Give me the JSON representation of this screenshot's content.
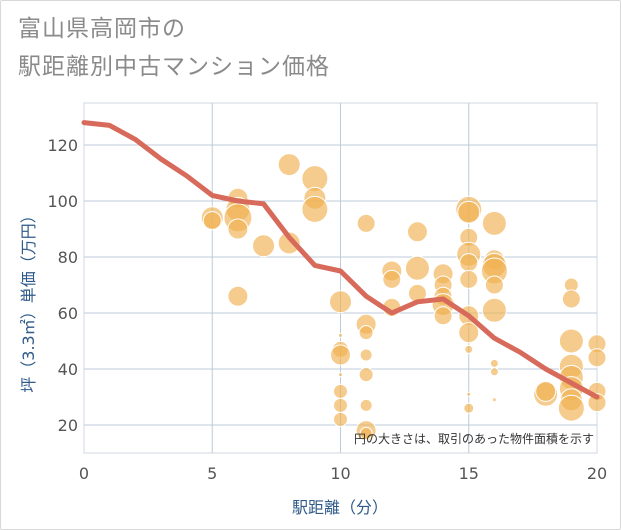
{
  "title_line1": "富山県高岡市の",
  "title_line2": "駅距離別中古マンション価格",
  "chart_data": {
    "type": "scatter",
    "xlabel": "駅距離（分）",
    "ylabel": "坪（3.3㎡）単価（万円）",
    "xlim": [
      0,
      20
    ],
    "ylim": [
      10,
      135
    ],
    "xticks": [
      0,
      5,
      10,
      15,
      20
    ],
    "yticks": [
      20,
      40,
      60,
      80,
      100,
      120
    ],
    "grid": true,
    "annotation": "円の大きさは、取引のあった物件面積を示す",
    "colors": {
      "bubble": "#f0b050",
      "line": "#d76a5b",
      "grid": "#bfcbd8"
    },
    "line": {
      "x": [
        0,
        1,
        2,
        3,
        4,
        5,
        6,
        7,
        8,
        9,
        10,
        11,
        12,
        13,
        14,
        15,
        16,
        17,
        18,
        19,
        20
      ],
      "y": [
        128,
        127,
        122,
        115,
        109,
        102,
        100,
        99,
        87,
        77,
        75,
        66,
        60,
        64,
        65,
        59,
        51,
        46,
        40,
        35,
        30
      ]
    },
    "bubbles": [
      {
        "x": 5,
        "y": 94,
        "s": 11
      },
      {
        "x": 5,
        "y": 93,
        "s": 9
      },
      {
        "x": 6,
        "y": 101,
        "s": 10
      },
      {
        "x": 6,
        "y": 97,
        "s": 12
      },
      {
        "x": 6,
        "y": 94,
        "s": 14
      },
      {
        "x": 6,
        "y": 90,
        "s": 10
      },
      {
        "x": 6,
        "y": 66,
        "s": 10
      },
      {
        "x": 7,
        "y": 84,
        "s": 11
      },
      {
        "x": 8,
        "y": 113,
        "s": 11
      },
      {
        "x": 8,
        "y": 85,
        "s": 11
      },
      {
        "x": 9,
        "y": 108,
        "s": 13
      },
      {
        "x": 9,
        "y": 101,
        "s": 11
      },
      {
        "x": 9,
        "y": 97,
        "s": 13
      },
      {
        "x": 10,
        "y": 64,
        "s": 11
      },
      {
        "x": 10,
        "y": 47,
        "s": 8
      },
      {
        "x": 10,
        "y": 45,
        "s": 10
      },
      {
        "x": 10,
        "y": 32,
        "s": 7
      },
      {
        "x": 10,
        "y": 27,
        "s": 7
      },
      {
        "x": 10,
        "y": 22,
        "s": 7
      },
      {
        "x": 10,
        "y": 52,
        "s": 2
      },
      {
        "x": 10,
        "y": 38,
        "s": 2
      },
      {
        "x": 11,
        "y": 92,
        "s": 9
      },
      {
        "x": 11,
        "y": 56,
        "s": 10
      },
      {
        "x": 11,
        "y": 53,
        "s": 7
      },
      {
        "x": 11,
        "y": 45,
        "s": 6
      },
      {
        "x": 11,
        "y": 38,
        "s": 7
      },
      {
        "x": 11,
        "y": 27,
        "s": 6
      },
      {
        "x": 11,
        "y": 18,
        "s": 10
      },
      {
        "x": 11,
        "y": 17,
        "s": 6
      },
      {
        "x": 12,
        "y": 75,
        "s": 10
      },
      {
        "x": 12,
        "y": 72,
        "s": 9
      },
      {
        "x": 12,
        "y": 62,
        "s": 9
      },
      {
        "x": 13,
        "y": 89,
        "s": 10
      },
      {
        "x": 13,
        "y": 76,
        "s": 12
      },
      {
        "x": 13,
        "y": 67,
        "s": 9
      },
      {
        "x": 14,
        "y": 74,
        "s": 10
      },
      {
        "x": 14,
        "y": 70,
        "s": 9
      },
      {
        "x": 14,
        "y": 66,
        "s": 9
      },
      {
        "x": 14,
        "y": 63,
        "s": 11
      },
      {
        "x": 14,
        "y": 59,
        "s": 9
      },
      {
        "x": 15,
        "y": 97,
        "s": 13
      },
      {
        "x": 15,
        "y": 96,
        "s": 11
      },
      {
        "x": 15,
        "y": 87,
        "s": 9
      },
      {
        "x": 15,
        "y": 81,
        "s": 12
      },
      {
        "x": 15,
        "y": 78,
        "s": 9
      },
      {
        "x": 15,
        "y": 72,
        "s": 9
      },
      {
        "x": 15,
        "y": 59,
        "s": 10
      },
      {
        "x": 15,
        "y": 53,
        "s": 10
      },
      {
        "x": 15,
        "y": 47,
        "s": 4
      },
      {
        "x": 15,
        "y": 31,
        "s": 2
      },
      {
        "x": 15,
        "y": 26,
        "s": 5
      },
      {
        "x": 16,
        "y": 92,
        "s": 12
      },
      {
        "x": 16,
        "y": 79,
        "s": 10
      },
      {
        "x": 16,
        "y": 77,
        "s": 12
      },
      {
        "x": 16,
        "y": 75,
        "s": 13
      },
      {
        "x": 16,
        "y": 70,
        "s": 9
      },
      {
        "x": 16,
        "y": 61,
        "s": 12
      },
      {
        "x": 16,
        "y": 42,
        "s": 4
      },
      {
        "x": 16,
        "y": 39,
        "s": 4
      },
      {
        "x": 16,
        "y": 29,
        "s": 2
      },
      {
        "x": 18,
        "y": 31,
        "s": 12
      },
      {
        "x": 18,
        "y": 32,
        "s": 10
      },
      {
        "x": 19,
        "y": 70,
        "s": 7
      },
      {
        "x": 19,
        "y": 65,
        "s": 9
      },
      {
        "x": 19,
        "y": 50,
        "s": 12
      },
      {
        "x": 19,
        "y": 41,
        "s": 12
      },
      {
        "x": 19,
        "y": 37,
        "s": 12
      },
      {
        "x": 19,
        "y": 33,
        "s": 12
      },
      {
        "x": 19,
        "y": 29,
        "s": 11
      },
      {
        "x": 19,
        "y": 26,
        "s": 13
      },
      {
        "x": 20,
        "y": 49,
        "s": 9
      },
      {
        "x": 20,
        "y": 44,
        "s": 9
      },
      {
        "x": 20,
        "y": 32,
        "s": 9
      },
      {
        "x": 20,
        "y": 28,
        "s": 9
      }
    ]
  }
}
